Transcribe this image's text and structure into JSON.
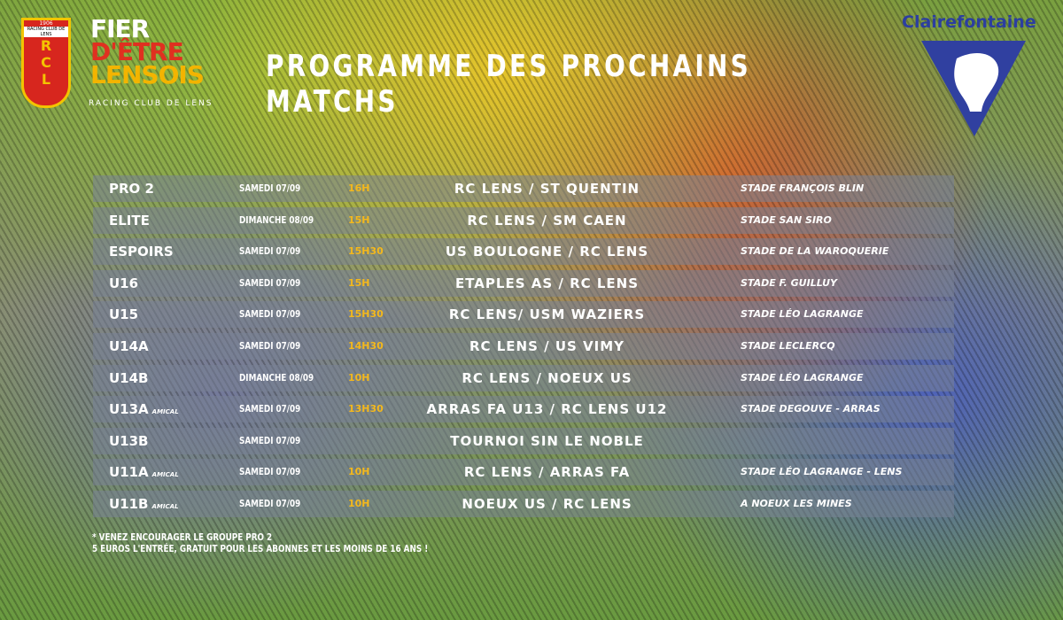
{
  "header": {
    "crest": {
      "year": "1906",
      "name": "RACING CLUB DE LENS",
      "letters": [
        "R",
        "C",
        "L"
      ]
    },
    "slogan": [
      "FIER",
      "D'ÊTRE",
      "LENSOIS"
    ],
    "club": "RACING CLUB DE LENS",
    "title": "PROGRAMME DES PROCHAINS MATCHS",
    "sponsor": "Clairefontaine"
  },
  "table": {
    "rows": [
      {
        "team": "PRO 2",
        "date": "SAMEDI 07/09",
        "time": "16H",
        "match": "RC LENS / ST QUENTIN",
        "venue": "STADE FRANÇOIS BLIN"
      },
      {
        "team": "ELITE",
        "date": "DIMANCHE 08/09",
        "time": "15H",
        "match": "RC LENS / SM CAEN",
        "venue": "STADE SAN SIRO"
      },
      {
        "team": "ESPOIRS",
        "date": "SAMEDI 07/09",
        "time": "15H30",
        "match": "US BOULOGNE / RC LENS",
        "venue": "STADE DE LA WAROQUERIE"
      },
      {
        "team": "U16",
        "date": "SAMEDI 07/09",
        "time": "15H",
        "match": "ETAPLES AS / RC LENS",
        "venue": "STADE F. GUILLUY"
      },
      {
        "team": "U15",
        "date": "SAMEDI 07/09",
        "time": "15H30",
        "match": "RC LENS/ USM WAZIERS",
        "venue": "STADE LÉO LAGRANGE"
      },
      {
        "team": "U14A",
        "date": "SAMEDI 07/09",
        "time": "14H30",
        "match": "RC LENS / US VIMY",
        "venue": "STADE LECLERCQ"
      },
      {
        "team": "U14B",
        "date": "DIMANCHE 08/09",
        "time": "10H",
        "match": "RC LENS / NOEUX US",
        "venue": "STADE LÉO LAGRANGE"
      },
      {
        "team": "U13A",
        "tag": "AMICAL",
        "date": "SAMEDI 07/09",
        "time": "13H30",
        "match": "ARRAS FA U13 / RC LENS U12",
        "venue": "STADE DEGOUVE - ARRAS"
      },
      {
        "team": "U13B",
        "date": "SAMEDI 07/09",
        "match": "TOURNOI SIN LE NOBLE"
      },
      {
        "team": "U11A",
        "tag": "AMICAL",
        "date": "SAMEDI 07/09",
        "time": "10H",
        "match": "RC LENS / ARRAS FA",
        "venue": "STADE LÉO LAGRANGE - LENS"
      },
      {
        "team": "U11B",
        "tag": "AMICAL",
        "date": "SAMEDI 07/09",
        "time": "10H",
        "match": "NOEUX US / RC LENS",
        "venue": "A NOEUX LES MINES"
      }
    ]
  },
  "footnote": [
    "* VENEZ ENCOURAGER LE GROUPE PRO 2",
    "5 EUROS L'ENTRÉE, GRATUIT POUR LES ABONNES ET LES MOINS DE 16 ANS !"
  ]
}
